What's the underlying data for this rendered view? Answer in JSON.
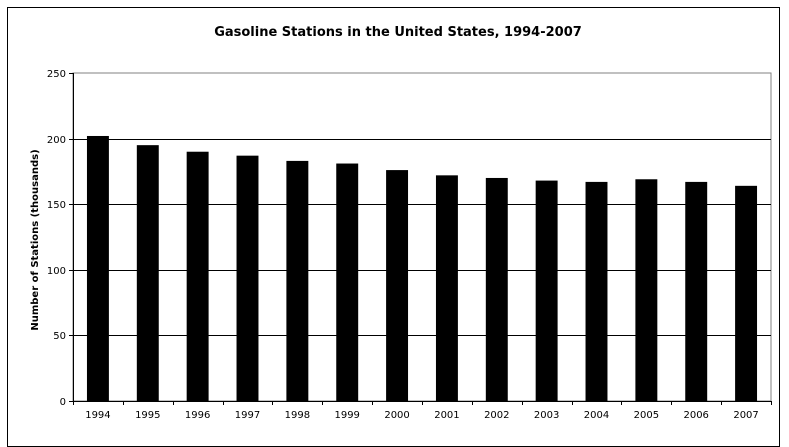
{
  "chart_data": {
    "type": "bar",
    "title": "Gasoline Stations in the United States, 1994-2007",
    "xlabel": "",
    "ylabel": "Number of Stations (thousands)",
    "categories": [
      "1994",
      "1995",
      "1996",
      "1997",
      "1998",
      "1999",
      "2000",
      "2001",
      "2002",
      "2003",
      "2004",
      "2005",
      "2006",
      "2007"
    ],
    "values": [
      202,
      195,
      190,
      187,
      183,
      181,
      176,
      172,
      170,
      168,
      167,
      169,
      167,
      164
    ],
    "ylim": [
      0,
      250
    ],
    "yticks": [
      0,
      50,
      100,
      150,
      200,
      250
    ],
    "grid": true,
    "legend": "none",
    "colors": {
      "bar": "#000000",
      "grid": "#000000",
      "plot_border": "#808080",
      "background": "#ffffff"
    }
  }
}
